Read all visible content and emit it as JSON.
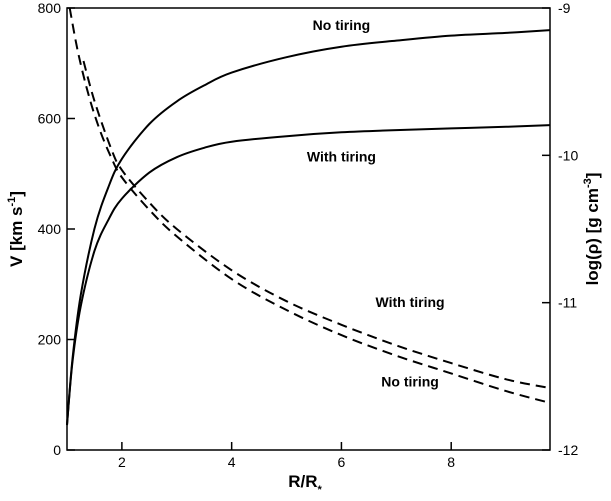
{
  "chart_data": {
    "type": "line",
    "xlabel": "R/R",
    "xlabel_sub": "*",
    "ylabel_left": "V [km s",
    "ylabel_left_sup": "-1",
    "ylabel_left_end": "]",
    "ylabel_right": "log(ρ) [g cm",
    "ylabel_right_sup": "-3",
    "ylabel_right_end": "]",
    "xlim": [
      1,
      9.8
    ],
    "ylim_left": [
      0,
      800
    ],
    "ylim_right": [
      -12,
      -9
    ],
    "xticks": [
      2,
      4,
      6,
      8
    ],
    "xtick_labels": [
      "2",
      "4",
      "6",
      "8"
    ],
    "yticks_left": [
      0,
      200,
      400,
      600,
      800
    ],
    "yticks_left_labels": [
      "0",
      "200",
      "400",
      "600",
      "800"
    ],
    "yticks_right": [
      -12,
      -11,
      -10,
      -9
    ],
    "yticks_right_labels": [
      "-12",
      "-11",
      "-10",
      "-9"
    ],
    "series": [
      {
        "style": "solid",
        "axis": "left",
        "x": [
          1.0,
          1.1,
          1.25,
          1.5,
          1.75,
          2.0,
          2.5,
          3.0,
          3.5,
          4.0,
          5.0,
          6.0,
          7.0,
          8.0,
          9.0,
          9.8
        ],
        "y": [
          45,
          165,
          280,
          400,
          475,
          527,
          590,
          631,
          660,
          683,
          711,
          730,
          741,
          750,
          755,
          760
        ]
      },
      {
        "style": "solid",
        "axis": "left",
        "x": [
          1.0,
          1.1,
          1.25,
          1.5,
          1.75,
          2.0,
          2.5,
          3.0,
          3.5,
          4.0,
          5.0,
          6.0,
          7.0,
          8.0,
          9.0,
          9.8
        ],
        "y": [
          45,
          160,
          260,
          360,
          416,
          455,
          502,
          530,
          547,
          558,
          568,
          575,
          579,
          582,
          585,
          588
        ]
      },
      {
        "style": "dashed",
        "axis": "right",
        "x": [
          1.05,
          1.2,
          1.4,
          1.6,
          1.8,
          2.0,
          2.5,
          3.0,
          4.0,
          5.0,
          6.0,
          7.0,
          8.0,
          9.0,
          9.8
        ],
        "y": [
          -9.0,
          -9.3,
          -9.6,
          -9.83,
          -10.01,
          -10.15,
          -10.37,
          -10.55,
          -10.84,
          -11.05,
          -11.22,
          -11.36,
          -11.48,
          -11.6,
          -11.68
        ]
      },
      {
        "style": "dashed",
        "axis": "right",
        "x": [
          1.3,
          1.5,
          1.8,
          2.0,
          2.5,
          3.0,
          4.0,
          5.0,
          6.0,
          7.0,
          8.0,
          9.0,
          9.8
        ],
        "y": [
          -9.36,
          -9.63,
          -9.95,
          -10.1,
          -10.32,
          -10.5,
          -10.78,
          -10.99,
          -11.15,
          -11.29,
          -11.41,
          -11.52,
          -11.58
        ]
      }
    ],
    "annotations": [
      {
        "text": "No tiring",
        "x": 6.0,
        "y": 760,
        "axis": "left"
      },
      {
        "text": "With tiring",
        "x": 6.0,
        "y": 522,
        "axis": "left"
      },
      {
        "text": "With tiring",
        "x": 7.25,
        "y": -11.03,
        "axis": "right"
      },
      {
        "text": "No tiring",
        "x": 7.25,
        "y": -11.57,
        "axis": "right"
      }
    ]
  }
}
